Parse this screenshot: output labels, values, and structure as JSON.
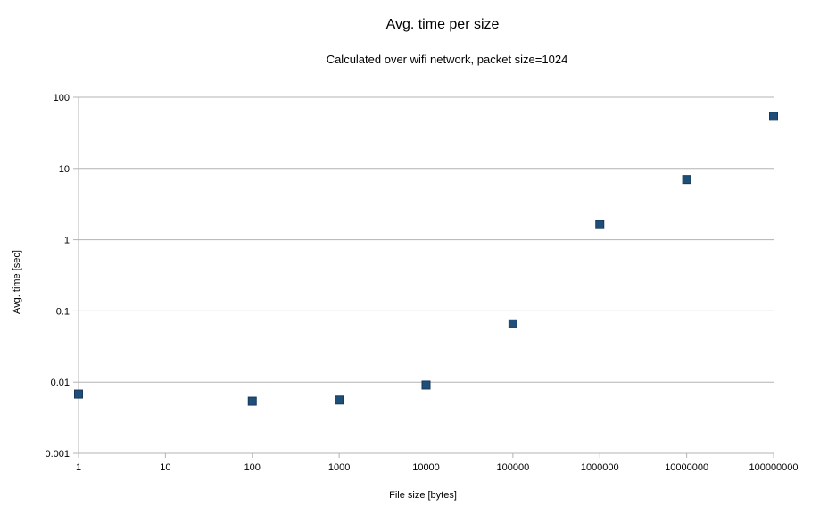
{
  "chart_data": {
    "type": "scatter",
    "title": "Avg. time per size",
    "subtitle": "Calculated over wifi network, packet size=1024",
    "xlabel": "File size [bytes]",
    "ylabel": "Avg. time [sec]",
    "x_scale": "log",
    "y_scale": "log",
    "xlim": [
      1,
      100000000
    ],
    "ylim": [
      0.001,
      100
    ],
    "x_ticks": [
      "1",
      "10",
      "100",
      "1000",
      "10000",
      "100000",
      "1000000",
      "10000000",
      "100000000"
    ],
    "y_ticks": [
      "0.001",
      "0.01",
      "0.1",
      "1",
      "10",
      "100"
    ],
    "grid": "horizontal",
    "legend": "none",
    "marker": "square",
    "colors": {
      "marker_fill": "#1f4e79",
      "marker_edge": "#16385a",
      "grid": "#b3b3b3",
      "axis": "#b3b3b3"
    },
    "series": [
      {
        "x": [
          1,
          100,
          1000,
          10000,
          100000,
          1000000,
          10000000,
          100000000
        ],
        "y": [
          0.0068,
          0.0054,
          0.0056,
          0.0091,
          0.066,
          1.63,
          7.0,
          54
        ]
      }
    ]
  }
}
